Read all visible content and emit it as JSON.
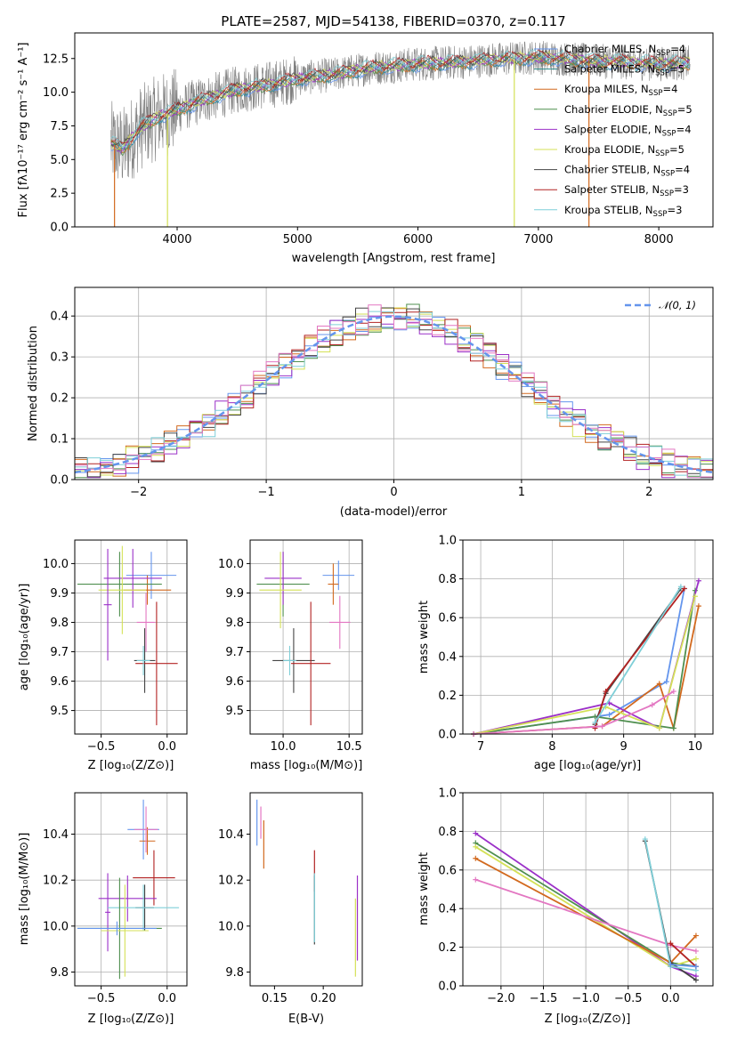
{
  "colors": {
    "Chabrier MILES": "#6495ed",
    "Salpeter MILES": "#2e8b8b",
    "Kroupa MILES": "#d2691e",
    "Chabrier ELODIE": "#4f8f4f",
    "Salpeter ELODIE": "#9b30c8",
    "Kroupa ELODIE": "#d4e157",
    "Chabrier STELIB": "#444444",
    "Salpeter STELIB": "#b22222",
    "Kroupa STELIB": "#7fcfd8",
    "extra_pink": "#e377c2",
    "normal_curve": "#6495ed",
    "data_spectrum": "#808080"
  },
  "chart_data": [
    {
      "id": "spectrum",
      "type": "line",
      "title": "PLATE=2587, MJD=54138, FIBERID=0370, z=0.117",
      "xlabel": "wavelength [Angstrom, rest frame]",
      "ylabel": "Flux [fλ10⁻¹⁷ erg cm⁻² s⁻¹ A⁻¹]",
      "xlim": [
        3150,
        8450
      ],
      "ylim": [
        0,
        14.4
      ],
      "xticks": [
        "4000",
        "5000",
        "6000",
        "7000",
        "8000"
      ],
      "yticks": [
        "0.0",
        "2.5",
        "5.0",
        "7.5",
        "10.0",
        "12.5"
      ],
      "legend_position": "top-right",
      "legend": [
        {
          "name": "Chabrier MILES",
          "sub": "SSP",
          "n": "=4"
        },
        {
          "name": "Salpeter MILES",
          "sub": "SSP",
          "n": "=5"
        },
        {
          "name": "Kroupa MILES",
          "sub": "SSP",
          "n": "=4"
        },
        {
          "name": "Chabrier ELODIE",
          "sub": "SSP",
          "n": "=5"
        },
        {
          "name": "Salpeter ELODIE",
          "sub": "SSP",
          "n": "=4"
        },
        {
          "name": "Kroupa ELODIE",
          "sub": "SSP",
          "n": "=5"
        },
        {
          "name": "Chabrier STELIB",
          "sub": "SSP",
          "n": "=4"
        },
        {
          "name": "Salpeter STELIB",
          "sub": "SSP",
          "n": "=3"
        },
        {
          "name": "Kroupa STELIB",
          "sub": "SSP",
          "n": "=3"
        }
      ],
      "continuum": {
        "x": [
          3450,
          3550,
          3700,
          3850,
          4000,
          4200,
          4500,
          4800,
          5000,
          5300,
          5600,
          6000,
          6300,
          6600,
          7000,
          7500,
          8000,
          8300
        ],
        "y": [
          6.2,
          5.8,
          7.4,
          8.2,
          8.7,
          9.4,
          10.2,
          10.6,
          11.0,
          11.3,
          11.8,
          12.1,
          12.2,
          12.4,
          12.6,
          12.3,
          12.1,
          12.2
        ]
      },
      "model_dropouts": [
        {
          "x": 3480,
          "series": "Kroupa MILES"
        },
        {
          "x": 3920,
          "series": "Kroupa ELODIE"
        },
        {
          "x": 6800,
          "series": "Kroupa ELODIE"
        },
        {
          "x": 7420,
          "series": "Kroupa MILES"
        }
      ]
    },
    {
      "id": "residuals",
      "type": "step",
      "xlabel": "(data-model)/error",
      "ylabel": "Normed distribution",
      "xlim": [
        -2.5,
        2.5
      ],
      "ylim": [
        0,
        0.47
      ],
      "xticks": [
        "-2",
        "-1",
        "0",
        "1",
        "2"
      ],
      "yticks": [
        "0.0",
        "0.1",
        "0.2",
        "0.3",
        "0.4"
      ],
      "grid": true,
      "legend_position": "top-right",
      "legend": [
        {
          "name": "𝒩(0, 1)"
        }
      ]
    },
    {
      "id": "age_vs_Z",
      "type": "errorbar",
      "xlabel": "Z [log₁₀(Z/Z⊙)]",
      "ylabel": "age  [log₁₀(age/yr)]",
      "xlim": [
        -0.7,
        0.15
      ],
      "ylim": [
        9.42,
        10.08
      ],
      "xticks": [
        "-0.5",
        "0.0"
      ],
      "yticks": [
        "9.5",
        "9.6",
        "9.7",
        "9.8",
        "9.9",
        "10.0"
      ],
      "grid": true,
      "points": [
        {
          "series": "Chabrier MILES",
          "x": -0.12,
          "y": 9.96,
          "xerr": 0.19,
          "yerr": 0.08
        },
        {
          "series": "Kroupa MILES",
          "x": -0.15,
          "y": 9.91,
          "xerr": 0.18,
          "yerr": 0.05
        },
        {
          "series": "Chabrier ELODIE",
          "x": -0.36,
          "y": 9.93,
          "xerr": 0.32,
          "yerr": 0.11
        },
        {
          "series": "Salpeter ELODIE",
          "x": -0.26,
          "y": 9.95,
          "xerr": 0.22,
          "yerr": 0.1
        },
        {
          "series": "Kroupa ELODIE",
          "x": -0.34,
          "y": 9.91,
          "xerr": 0.18,
          "yerr": 0.15
        },
        {
          "series": "Salpeter ELODIE",
          "x": -0.45,
          "y": 9.86,
          "xerr": 0.03,
          "yerr": 0.19
        },
        {
          "series": "extra_pink",
          "x": -0.16,
          "y": 9.8,
          "xerr": 0.07,
          "yerr": 0.1
        },
        {
          "series": "Chabrier STELIB",
          "x": -0.17,
          "y": 9.67,
          "xerr": 0.08,
          "yerr": 0.11
        },
        {
          "series": "Salpeter STELIB",
          "x": -0.08,
          "y": 9.66,
          "xerr": 0.16,
          "yerr": 0.21
        },
        {
          "series": "Kroupa STELIB",
          "x": -0.18,
          "y": 9.67,
          "xerr": 0.05,
          "yerr": 0.05
        }
      ]
    },
    {
      "id": "age_vs_mass",
      "type": "errorbar",
      "xlabel": "mass [log₁₀(M/M⊙)]",
      "ylabel": "",
      "xlim": [
        9.75,
        10.6
      ],
      "ylim": [
        9.42,
        10.08
      ],
      "xticks": [
        "10.0",
        "10.5"
      ],
      "yticks": [
        "9.5",
        "9.6",
        "9.7",
        "9.8",
        "9.9",
        "10.0"
      ],
      "grid": true,
      "points": [
        {
          "series": "Chabrier MILES",
          "x": 10.42,
          "y": 9.96,
          "xerr": 0.12,
          "yerr": 0.05
        },
        {
          "series": "Kroupa MILES",
          "x": 10.38,
          "y": 9.93,
          "xerr": 0.04,
          "yerr": 0.07
        },
        {
          "series": "extra_pink",
          "x": 10.43,
          "y": 9.8,
          "xerr": 0.08,
          "yerr": 0.09
        },
        {
          "series": "Chabrier ELODIE",
          "x": 10.0,
          "y": 9.93,
          "xerr": 0.2,
          "yerr": 0.11
        },
        {
          "series": "Salpeter ELODIE",
          "x": 10.0,
          "y": 9.95,
          "xerr": 0.14,
          "yerr": 0.09
        },
        {
          "series": "Kroupa ELODIE",
          "x": 9.98,
          "y": 9.91,
          "xerr": 0.16,
          "yerr": 0.13
        },
        {
          "series": "Chabrier STELIB",
          "x": 10.08,
          "y": 9.67,
          "xerr": 0.16,
          "yerr": 0.11
        },
        {
          "series": "Salpeter STELIB",
          "x": 10.21,
          "y": 9.66,
          "xerr": 0.15,
          "yerr": 0.21
        },
        {
          "series": "Kroupa STELIB",
          "x": 10.05,
          "y": 9.67,
          "xerr": 0.05,
          "yerr": 0.05
        }
      ]
    },
    {
      "id": "massweight_vs_age",
      "type": "line",
      "xlabel": "age  [log₁₀(age/yr)]",
      "ylabel": "mass weight",
      "xlim": [
        6.75,
        10.25
      ],
      "ylim": [
        0,
        1.0
      ],
      "xticks": [
        "7",
        "8",
        "9",
        "10"
      ],
      "yticks": [
        "0.0",
        "0.2",
        "0.4",
        "0.6",
        "0.8",
        "1.0"
      ],
      "grid": true
    },
    {
      "id": "mass_vs_Z",
      "type": "errorbar",
      "xlabel": "Z [log₁₀(Z/Z⊙)]",
      "ylabel": "mass [log₁₀(M/M⊙)]",
      "xlim": [
        -0.7,
        0.15
      ],
      "ylim": [
        9.74,
        10.58
      ],
      "xticks": [
        "-0.5",
        "0.0"
      ],
      "yticks": [
        "9.8",
        "10.0",
        "10.2",
        "10.4"
      ],
      "grid": true
    },
    {
      "id": "mass_vs_ebv",
      "type": "errorbar",
      "xlabel": "E(B-V)",
      "ylabel": "",
      "xlim": [
        0.125,
        0.24
      ],
      "ylim": [
        9.74,
        10.58
      ],
      "xticks": [
        "0.15",
        "0.20"
      ],
      "yticks": [
        "9.8",
        "10.0",
        "10.2",
        "10.4"
      ],
      "grid": false
    },
    {
      "id": "massweight_vs_Z",
      "type": "line",
      "xlabel": "Z [log₁₀(Z/Z⊙)]",
      "ylabel": "mass weight",
      "xlim": [
        -2.45,
        0.5
      ],
      "ylim": [
        0,
        1.0
      ],
      "xticks": [
        "-2.0",
        "-1.5",
        "-1.0",
        "-0.5",
        "0.0"
      ],
      "yticks": [
        "0.0",
        "0.2",
        "0.4",
        "0.6",
        "0.8",
        "1.0"
      ],
      "grid": true
    }
  ]
}
